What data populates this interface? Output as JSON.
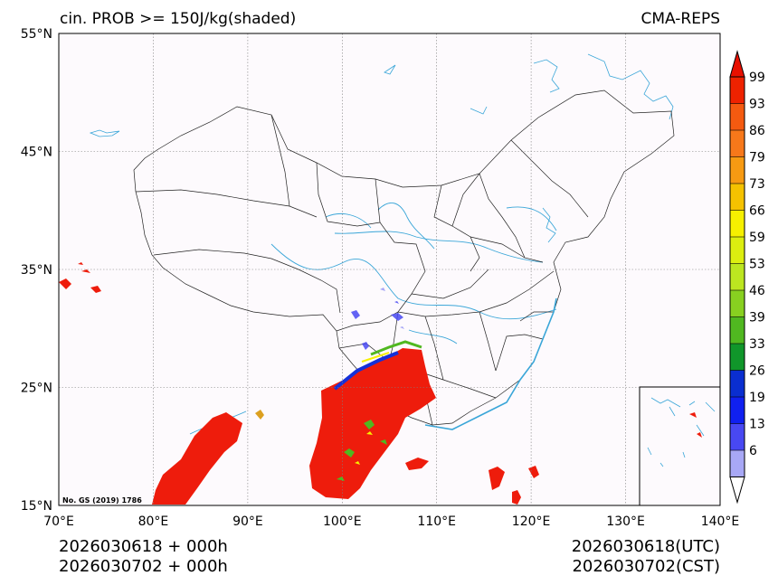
{
  "header": {
    "title": "cin. PROB >= 150J/kg(shaded)",
    "model": "CMA-REPS"
  },
  "map": {
    "lat_labels": [
      "55°N",
      "45°N",
      "35°N",
      "25°N",
      "15°N"
    ],
    "lon_labels": [
      "70°E",
      "80°E",
      "90°E",
      "100°E",
      "110°E",
      "120°E",
      "130°E",
      "140°E"
    ],
    "extent": {
      "lon": [
        70,
        140
      ],
      "lat": [
        15,
        55
      ]
    },
    "grid": true,
    "map_no": "No. GS (2019) 1786",
    "background_color": "#fdfafd",
    "boundary_color": "#222222",
    "river_color": "#3aa6d8"
  },
  "colorbar": {
    "levels": [
      "99",
      "93",
      "86",
      "79",
      "73",
      "66",
      "59",
      "53",
      "46",
      "39",
      "33",
      "26",
      "19",
      "13",
      "6"
    ],
    "colors": [
      "#ee2200",
      "#f45a10",
      "#f7781a",
      "#f79a12",
      "#f5c200",
      "#f6f000",
      "#dcee10",
      "#bce620",
      "#88d020",
      "#50b820",
      "#10962a",
      "#0a2ed0",
      "#1020f0",
      "#4848f2",
      "#a8a8f6"
    ],
    "top_arrow_color": "#e81000",
    "bottom_arrow_color": "#ffffff"
  },
  "footer": {
    "left_line1": "2026030618  +  000h",
    "left_line2": "2026030702  +  000h",
    "right_line1": "2026030618(UTC)",
    "right_line2": "2026030702(CST)"
  }
}
